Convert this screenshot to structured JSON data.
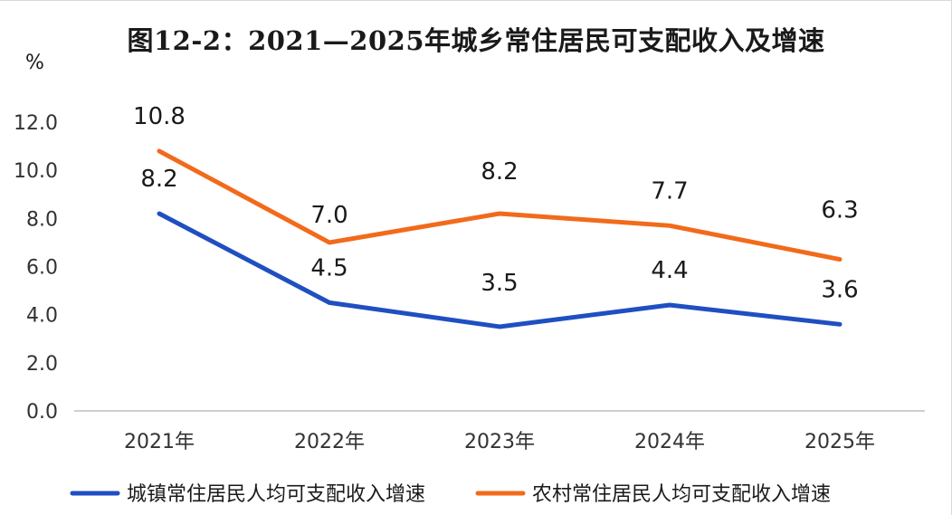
{
  "chart_data": {
    "type": "line",
    "title": "图12-2：2021—2025年城乡常住居民可支配收入及增速",
    "ylabel": "%",
    "categories": [
      "2021年",
      "2022年",
      "2023年",
      "2024年",
      "2025年"
    ],
    "yticks": [
      "0.0",
      "2.0",
      "4.0",
      "6.0",
      "8.0",
      "10.0",
      "12.0"
    ],
    "ylim": [
      0,
      12
    ],
    "grid": false,
    "legend_position": "bottom",
    "series": [
      {
        "name": "城镇常住居民人均可支配收入增速",
        "values": [
          8.2,
          4.5,
          3.5,
          4.4,
          3.6
        ],
        "labels": [
          "8.2",
          "4.5",
          "3.5",
          "4.4",
          "3.6"
        ],
        "color": "#1f4fc1"
      },
      {
        "name": "农村常住居民人均可支配收入增速",
        "values": [
          10.8,
          7.0,
          8.2,
          7.7,
          6.3
        ],
        "labels": [
          "10.8",
          "7.0",
          "8.2",
          "7.7",
          "6.3"
        ],
        "color": "#f26a1b"
      }
    ]
  }
}
